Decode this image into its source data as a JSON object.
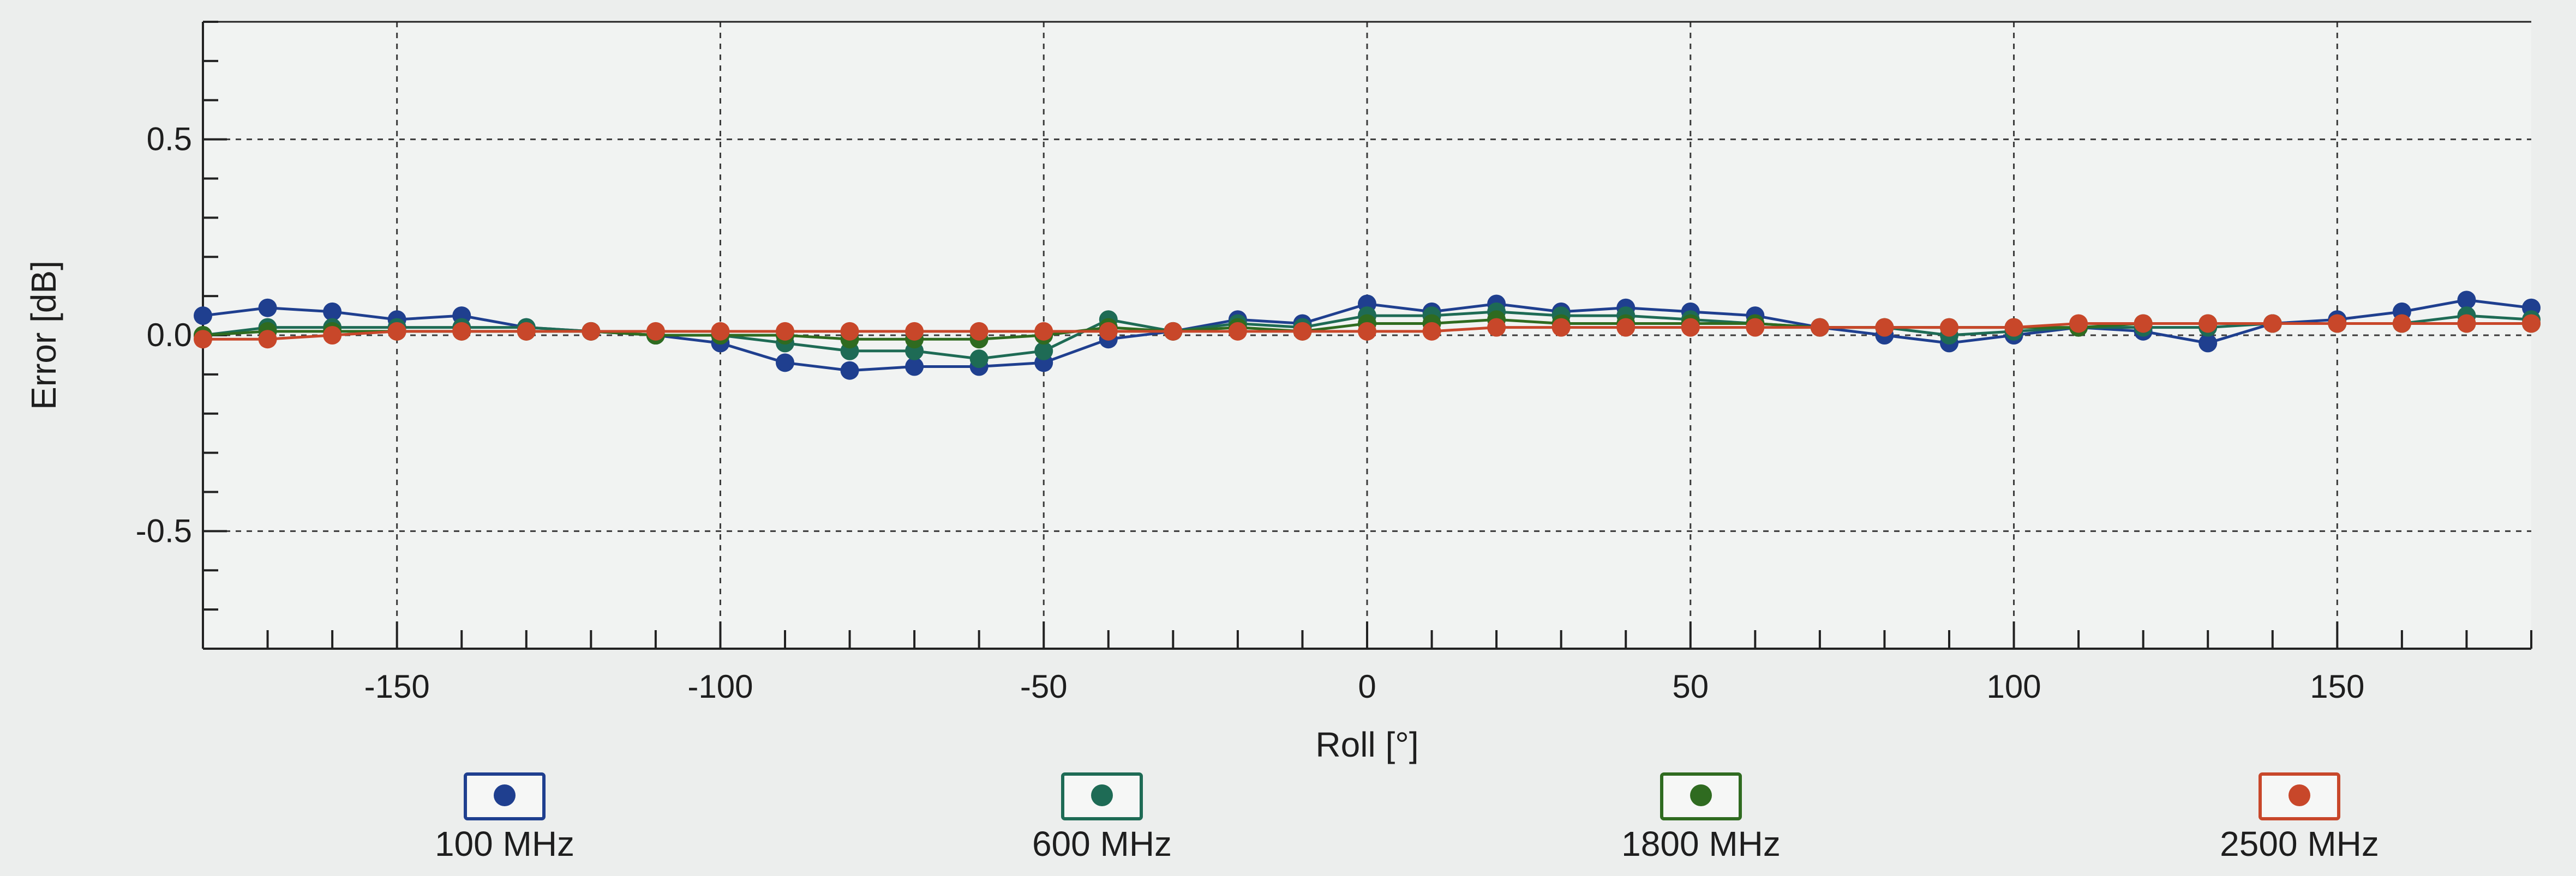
{
  "chart_data": {
    "type": "line",
    "xlabel": "Roll [°]",
    "ylabel": "Error [dB]",
    "xlim": [
      -180,
      180
    ],
    "ylim": [
      -0.8,
      0.8
    ],
    "x_ticks": [
      -150,
      -100,
      -50,
      0,
      50,
      100,
      150
    ],
    "x_tick_labels": [
      "-150",
      "-100",
      "-50",
      "0",
      "50",
      "100",
      "150"
    ],
    "y_ticks": [
      0.5,
      0.0,
      -0.5
    ],
    "y_tick_labels": [
      "0.5",
      "0.0",
      "-0.5"
    ],
    "grid": true,
    "legend_position": "bottom",
    "x": [
      -180,
      -170,
      -160,
      -150,
      -140,
      -130,
      -120,
      -110,
      -100,
      -90,
      -80,
      -70,
      -60,
      -50,
      -40,
      -30,
      -20,
      -10,
      0,
      10,
      20,
      30,
      40,
      50,
      60,
      70,
      80,
      90,
      100,
      110,
      120,
      130,
      140,
      150,
      160,
      170,
      180
    ],
    "series": [
      {
        "name": "100 MHz",
        "color": "#1f3f8f",
        "values": [
          0.05,
          0.07,
          0.06,
          0.04,
          0.05,
          0.02,
          0.01,
          0.0,
          -0.02,
          -0.07,
          -0.09,
          -0.08,
          -0.08,
          -0.07,
          -0.01,
          0.01,
          0.04,
          0.03,
          0.08,
          0.06,
          0.08,
          0.06,
          0.07,
          0.06,
          0.05,
          0.02,
          0.0,
          -0.02,
          0.0,
          0.02,
          0.01,
          -0.02,
          0.03,
          0.04,
          0.06,
          0.09,
          0.07
        ]
      },
      {
        "name": "600 MHz",
        "color": "#1e6b55",
        "values": [
          0.0,
          0.02,
          0.02,
          0.02,
          0.02,
          0.02,
          0.01,
          0.0,
          0.0,
          -0.02,
          -0.04,
          -0.04,
          -0.06,
          -0.04,
          0.04,
          0.01,
          0.03,
          0.02,
          0.05,
          0.05,
          0.06,
          0.05,
          0.05,
          0.04,
          0.03,
          0.02,
          0.02,
          0.0,
          0.01,
          0.02,
          0.02,
          0.02,
          0.03,
          0.03,
          0.03,
          0.05,
          0.04
        ]
      },
      {
        "name": "1800 MHz",
        "color": "#2f6b20",
        "values": [
          0.0,
          0.01,
          0.01,
          0.01,
          0.01,
          0.01,
          0.01,
          0.0,
          0.0,
          0.0,
          -0.01,
          -0.01,
          -0.01,
          0.0,
          0.02,
          0.01,
          0.02,
          0.01,
          0.03,
          0.03,
          0.04,
          0.03,
          0.03,
          0.03,
          0.03,
          0.02,
          0.02,
          0.02,
          0.02,
          0.02,
          0.03,
          0.03,
          0.03,
          0.03,
          0.03,
          0.03,
          0.03
        ]
      },
      {
        "name": "2500 MHz",
        "color": "#c8472a",
        "values": [
          -0.01,
          -0.01,
          0.0,
          0.01,
          0.01,
          0.01,
          0.01,
          0.01,
          0.01,
          0.01,
          0.01,
          0.01,
          0.01,
          0.01,
          0.01,
          0.01,
          0.01,
          0.01,
          0.01,
          0.01,
          0.02,
          0.02,
          0.02,
          0.02,
          0.02,
          0.02,
          0.02,
          0.02,
          0.02,
          0.03,
          0.03,
          0.03,
          0.03,
          0.03,
          0.03,
          0.03,
          0.03
        ]
      }
    ]
  }
}
